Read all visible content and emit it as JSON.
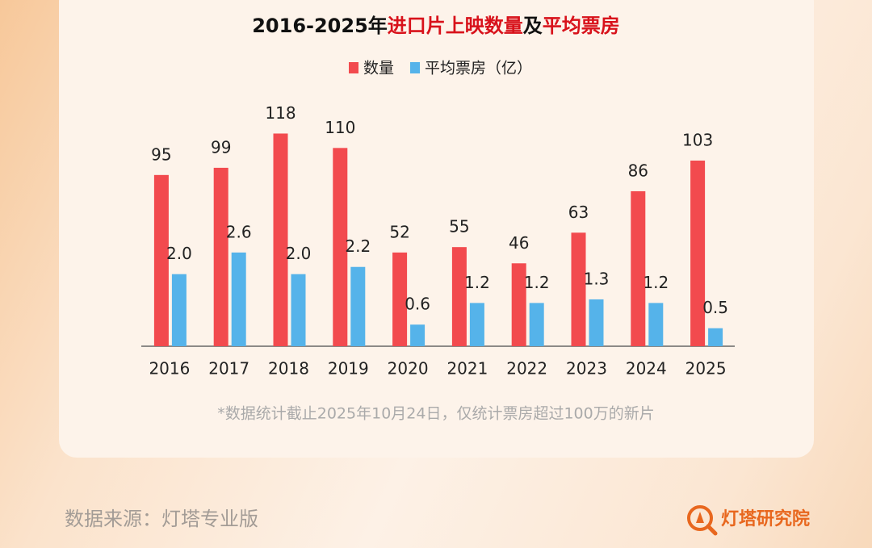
{
  "chart_data": {
    "type": "bar",
    "title": [
      {
        "text": "2016-2025年",
        "color": "#111111"
      },
      {
        "text": "进口片上映数量",
        "color": "#d8121b"
      },
      {
        "text": "及",
        "color": "#111111"
      },
      {
        "text": "平均票房",
        "color": "#d8121b"
      }
    ],
    "categories": [
      "2016",
      "2017",
      "2018",
      "2019",
      "2020",
      "2021",
      "2022",
      "2023",
      "2024",
      "2025"
    ],
    "series": [
      {
        "name": "数量",
        "color": "#f24a4e",
        "values": [
          95,
          99,
          118,
          110,
          52,
          55,
          46,
          63,
          86,
          103
        ]
      },
      {
        "name": "平均票房（亿）",
        "color": "#55b3ea",
        "axis": "y2",
        "values": [
          2.0,
          2.6,
          2.0,
          2.2,
          0.6,
          1.2,
          1.2,
          1.3,
          1.2,
          0.5
        ],
        "value_labels": [
          "2.0",
          "2.6",
          "2.0",
          "2.2",
          "0.6",
          "1.2",
          "1.2",
          "1.3",
          "1.2",
          "0.5"
        ]
      }
    ],
    "ylim": [
      0,
      120
    ],
    "y2lim": [
      0,
      6
    ],
    "note": "*数据统计截止2025年10月24日，仅统计票房超过100万的新片"
  },
  "footer": {
    "source": "数据来源：灯塔专业版",
    "brand": "灯塔研究院"
  }
}
